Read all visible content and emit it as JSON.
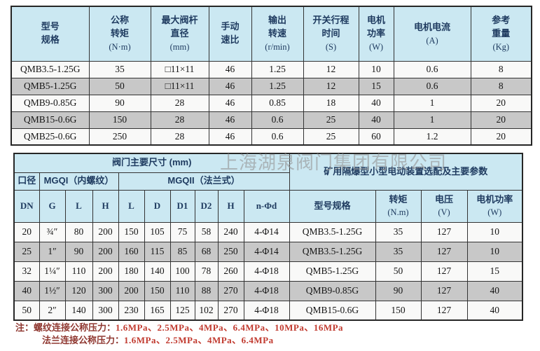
{
  "watermark": "上海湖泉阀门集团有限公司",
  "top_table": {
    "headers": [
      {
        "lines": [
          "型号",
          "规格"
        ]
      },
      {
        "lines": [
          "公称",
          "转矩",
          "(N·m)"
        ]
      },
      {
        "lines": [
          "最大阀杆",
          "直径",
          "(mm)"
        ]
      },
      {
        "lines": [
          "手动",
          "速比"
        ]
      },
      {
        "lines": [
          "输出",
          "转速",
          "(r/min)"
        ]
      },
      {
        "lines": [
          "开关行程",
          "时间",
          "(S)"
        ]
      },
      {
        "lines": [
          "电机",
          "功率",
          "(W)"
        ]
      },
      {
        "lines": [
          "电机电流",
          "(A)"
        ]
      },
      {
        "lines": [
          "参考",
          "重量",
          "(Kg)"
        ]
      }
    ],
    "rows": [
      [
        "QMB3.5-1.25G",
        "35",
        "□11×11",
        "46",
        "1.25",
        "12",
        "10",
        "0.6",
        "8"
      ],
      [
        "QMB5-1.25G",
        "50",
        "□11×11",
        "46",
        "1.25",
        "12",
        "15",
        "0.6",
        "8"
      ],
      [
        "QMB9-0.85G",
        "90",
        "28",
        "46",
        "0.85",
        "18",
        "40",
        "1",
        "20"
      ],
      [
        "QMB15-0.6G",
        "150",
        "28",
        "46",
        "0.6",
        "25",
        "40",
        "1",
        "20"
      ],
      [
        "QMB25-0.6G",
        "250",
        "28",
        "46",
        "0.6",
        "25",
        "60",
        "1.2",
        "20"
      ]
    ]
  },
  "bottom_table": {
    "dims_title": "阀门主要尺寸 (mm)",
    "right_title": "矿用隔爆型小型电动装置选配及主要参数",
    "bore_label": "口径",
    "mgqi_label": "MGQI（内螺纹）",
    "mgqii_label": "MGQII（法兰式）",
    "sub_headers": [
      "DN",
      "G",
      "L",
      "H",
      "L",
      "D",
      "D1",
      "D2",
      "H",
      "n-Φd"
    ],
    "right_headers": {
      "model": "型号规格",
      "torque_l1": "转矩",
      "torque_l2": "(N.m)",
      "volt_l1": "电压",
      "volt_l2": "(V)",
      "power_l1": "电机功率",
      "power_l2": "(W)"
    },
    "rows": [
      [
        "20",
        "¾″",
        "80",
        "200",
        "150",
        "105",
        "75",
        "58",
        "240",
        "4-Φ14",
        "QMB3.5-1.25G",
        "35",
        "127",
        "10"
      ],
      [
        "25",
        "1″",
        "90",
        "200",
        "160",
        "115",
        "85",
        "68",
        "250",
        "4-Φ14",
        "QMB3.5-1.25G",
        "35",
        "127",
        "10"
      ],
      [
        "32",
        "1¼″",
        "110",
        "200",
        "180",
        "140",
        "100",
        "78",
        "260",
        "4-Φ18",
        "QMB5-1.25G",
        "50",
        "127",
        "15"
      ],
      [
        "40",
        "1½″",
        "120",
        "300",
        "200",
        "150",
        "110",
        "88",
        "270",
        "4-Φ18",
        "QMB9-0.85G",
        "90",
        "127",
        "40"
      ],
      [
        "50",
        "2″",
        "140",
        "300",
        "230",
        "165",
        "125",
        "102",
        "270",
        "4-Φ18",
        "QMB15-0.6G",
        "150",
        "127",
        "40"
      ]
    ]
  },
  "notes": {
    "prefix": "注：",
    "line1_label": "螺纹连接公称压力：",
    "line1_values": "1.6MPa、2.5MPa、4MPa、6.4MPa、10MPa、16MPa",
    "line2_label": "法兰连接公称压力：",
    "line2_values": "1.6MPa、2.5MPa、4MPa、6.4MPa"
  },
  "colors": {
    "header_bg": "#cbe8f2",
    "alt_row_bg": "#c8c8c8",
    "row_bg": "#f9f9f8",
    "border": "#333333",
    "header_text": "#1e3a5f",
    "note_label": "#8f3730",
    "note_value": "#c13a2f",
    "watermark": "#969696"
  }
}
